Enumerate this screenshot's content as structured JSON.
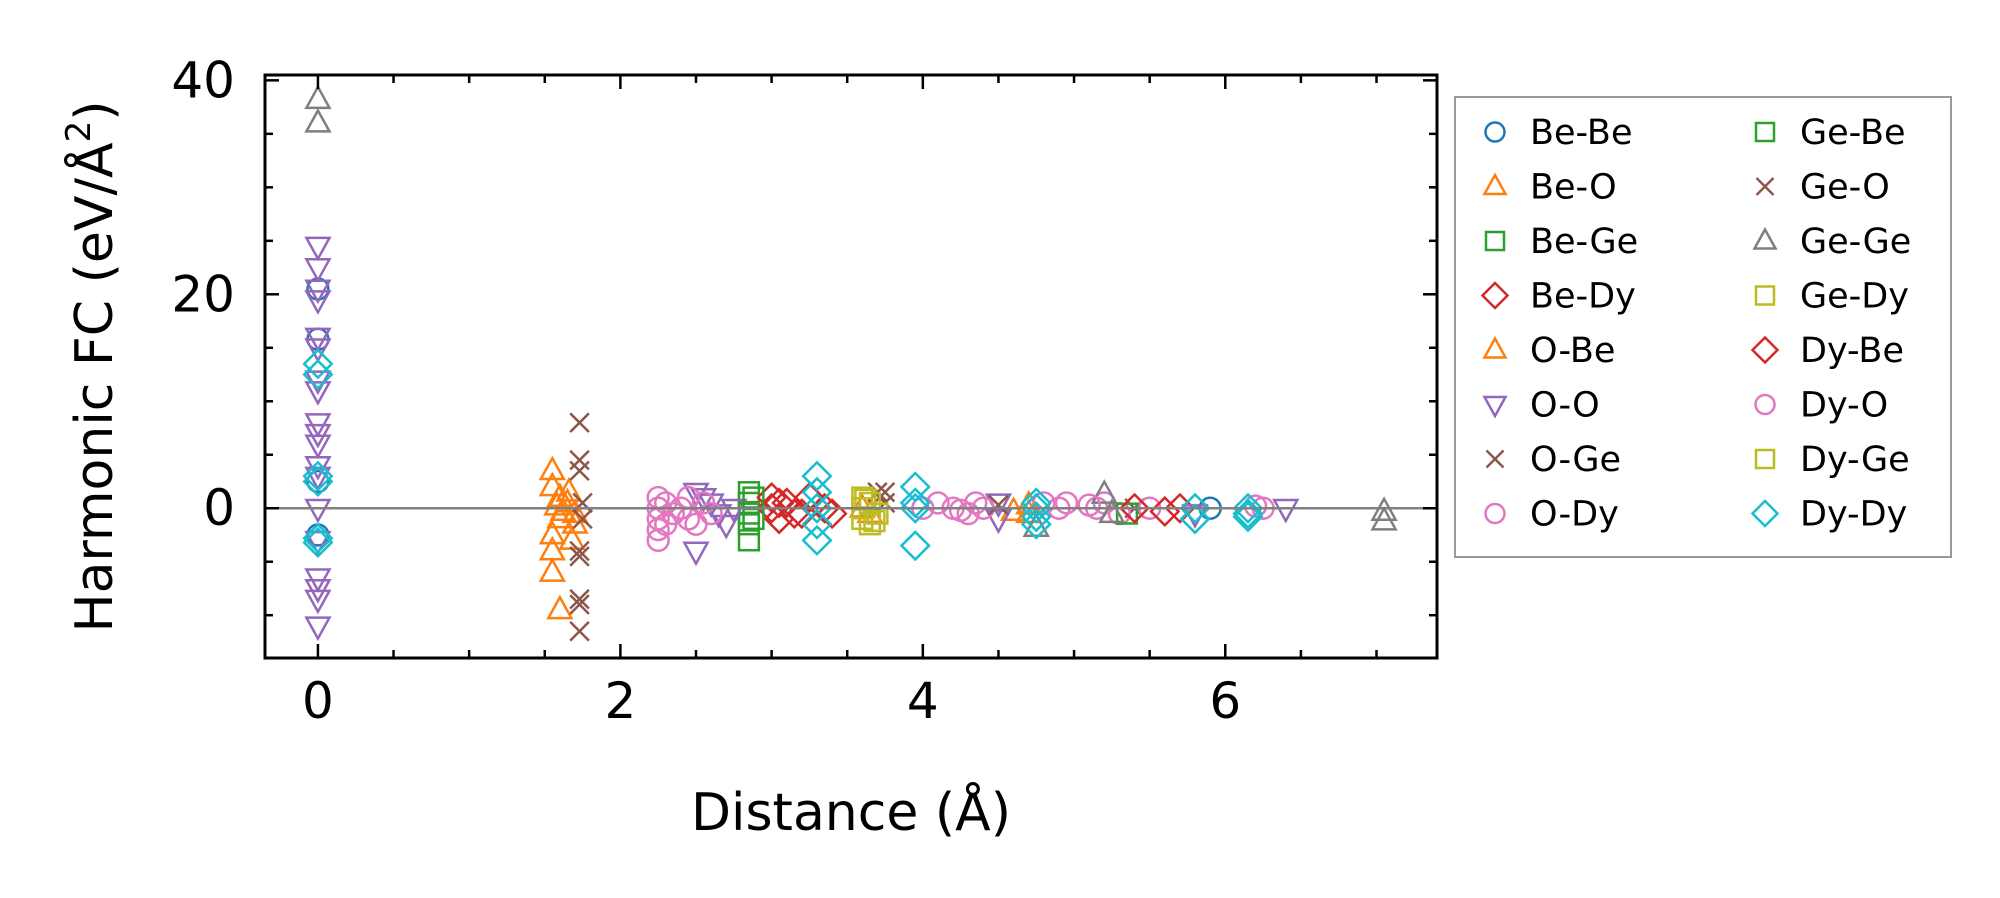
{
  "chart_data": {
    "type": "scatter",
    "xlabel": "Distance (Å)",
    "ylabel_main": "Harmonic FC (eV/Å",
    "ylabel_sup": "2",
    "ylabel_end": ")",
    "xlim": [
      -0.35,
      7.4
    ],
    "ylim": [
      -14,
      40.5
    ],
    "xticks": [
      0,
      2,
      4,
      6
    ],
    "xtick_labels": [
      "0",
      "2",
      "4",
      "6"
    ],
    "yticks": [
      0,
      20,
      40
    ],
    "ytick_labels": [
      "0",
      "20",
      "40"
    ],
    "grid": false,
    "zero_line": true,
    "legend_position": "outside-right",
    "series": [
      {
        "name": "Be-Be",
        "marker": "circle",
        "color": "#1f77b4",
        "points": [
          [
            0,
            20.5
          ],
          [
            0,
            15.8
          ],
          [
            0,
            2.5
          ],
          [
            0,
            -2.5
          ],
          [
            5.9,
            0
          ]
        ]
      },
      {
        "name": "Be-O",
        "marker": "triangle-up",
        "color": "#ff7f0e",
        "points": [
          [
            1.55,
            3.5
          ],
          [
            1.55,
            2
          ],
          [
            1.6,
            1
          ],
          [
            1.6,
            -1
          ],
          [
            1.55,
            -2.5
          ],
          [
            1.55,
            -4
          ],
          [
            1.55,
            -6
          ],
          [
            1.6,
            -9.5
          ],
          [
            1.65,
            0.5
          ],
          [
            1.7,
            -0.5
          ],
          [
            1.7,
            -1.5
          ],
          [
            4.6,
            -0.3
          ],
          [
            4.7,
            -0.5
          ]
        ]
      },
      {
        "name": "Be-Ge",
        "marker": "square",
        "color": "#2ca02c",
        "points": [
          [
            2.85,
            1.5
          ],
          [
            2.85,
            0.5
          ],
          [
            2.85,
            -0.5
          ],
          [
            2.85,
            -1.5
          ],
          [
            2.85,
            -3
          ]
        ]
      },
      {
        "name": "Be-Dy",
        "marker": "diamond",
        "color": "#d62728",
        "points": [
          [
            3.0,
            1
          ],
          [
            3.0,
            0
          ],
          [
            3.05,
            -1
          ],
          [
            3.1,
            0.5
          ],
          [
            3.15,
            -0.5
          ],
          [
            3.25,
            1
          ],
          [
            3.35,
            0
          ],
          [
            3.4,
            -0.5
          ],
          [
            5.7,
            0
          ]
        ]
      },
      {
        "name": "O-Be",
        "marker": "triangle-up",
        "color": "#ff7f0e",
        "points": [
          [
            1.58,
            0.2
          ],
          [
            1.62,
            -0.3
          ],
          [
            1.66,
            1.5
          ],
          [
            1.68,
            -3
          ],
          [
            3.6,
            0
          ],
          [
            3.65,
            -0.5
          ],
          [
            4.7,
            0.3
          ]
        ]
      },
      {
        "name": "O-O",
        "marker": "triangle-down",
        "color": "#9467bd",
        "points": [
          [
            0,
            24.5
          ],
          [
            0,
            22.5
          ],
          [
            0,
            20.5
          ],
          [
            0,
            19.5
          ],
          [
            0,
            16
          ],
          [
            0,
            15
          ],
          [
            0,
            12
          ],
          [
            0,
            11
          ],
          [
            0,
            8
          ],
          [
            0,
            7
          ],
          [
            0,
            6
          ],
          [
            0,
            4
          ],
          [
            0,
            3
          ],
          [
            0,
            0
          ],
          [
            0,
            -3
          ],
          [
            0,
            -6.5
          ],
          [
            0,
            -7.5
          ],
          [
            0,
            -8.5
          ],
          [
            0,
            -11
          ],
          [
            2.5,
            1.5
          ],
          [
            2.55,
            1
          ],
          [
            2.5,
            -4
          ],
          [
            2.6,
            0.5
          ],
          [
            2.65,
            -0.5
          ],
          [
            2.7,
            -1.5
          ],
          [
            2.75,
            0
          ],
          [
            4.5,
            0.5
          ],
          [
            4.5,
            -1
          ],
          [
            5.8,
            -0.5
          ],
          [
            6.4,
            0
          ]
        ]
      },
      {
        "name": "O-Ge",
        "marker": "x",
        "color": "#8c564b",
        "points": [
          [
            1.73,
            8
          ],
          [
            1.73,
            4.5
          ],
          [
            1.73,
            3.5
          ],
          [
            1.73,
            -4
          ],
          [
            1.73,
            -4.5
          ],
          [
            1.73,
            -8.5
          ],
          [
            1.73,
            -9
          ],
          [
            1.73,
            -11.5
          ],
          [
            3.7,
            1.5
          ],
          [
            3.75,
            0.5
          ],
          [
            5.4,
            0
          ]
        ]
      },
      {
        "name": "O-Dy",
        "marker": "circle",
        "color": "#e377c2",
        "points": [
          [
            2.25,
            1
          ],
          [
            2.25,
            0
          ],
          [
            2.25,
            -1
          ],
          [
            2.25,
            -2
          ],
          [
            2.25,
            -3
          ],
          [
            2.3,
            0.5
          ],
          [
            2.35,
            -0.5
          ],
          [
            2.4,
            0
          ],
          [
            2.45,
            1
          ],
          [
            2.5,
            -1.5
          ],
          [
            2.55,
            0.5
          ],
          [
            2.6,
            -0.5
          ],
          [
            4.0,
            0
          ],
          [
            4.1,
            0.5
          ],
          [
            4.2,
            0
          ],
          [
            4.3,
            -0.5
          ],
          [
            4.35,
            0.5
          ],
          [
            4.4,
            0
          ],
          [
            4.8,
            0.5
          ],
          [
            4.9,
            0
          ],
          [
            4.95,
            0.5
          ],
          [
            5.15,
            0
          ],
          [
            5.2,
            0.5
          ],
          [
            5.3,
            -0.5
          ],
          [
            5.5,
            0
          ],
          [
            6.25,
            0
          ]
        ]
      },
      {
        "name": "Ge-Be",
        "marker": "square",
        "color": "#2ca02c",
        "points": [
          [
            2.88,
            1
          ],
          [
            2.88,
            -1
          ],
          [
            5.35,
            -0.5
          ]
        ]
      },
      {
        "name": "Ge-O",
        "marker": "x",
        "color": "#8c564b",
        "points": [
          [
            1.75,
            0.5
          ],
          [
            1.75,
            -1
          ],
          [
            3.75,
            1.5
          ],
          [
            4.5,
            0.3
          ]
        ]
      },
      {
        "name": "Ge-Ge",
        "marker": "triangle-up",
        "color": "#7f7f7f",
        "points": [
          [
            0,
            38.2
          ],
          [
            0,
            36
          ],
          [
            4.75,
            -1.8
          ],
          [
            5.2,
            1.3
          ],
          [
            5.25,
            -0.5
          ],
          [
            7.05,
            -0.3
          ],
          [
            7.05,
            -1.2
          ]
        ]
      },
      {
        "name": "Ge-Dy",
        "marker": "square",
        "color": "#bcbd22",
        "points": [
          [
            3.6,
            1
          ],
          [
            3.6,
            0
          ],
          [
            3.6,
            -1
          ],
          [
            3.65,
            0.5
          ],
          [
            3.65,
            -1.5
          ],
          [
            3.7,
            -0.5
          ]
        ]
      },
      {
        "name": "Dy-Be",
        "marker": "diamond",
        "color": "#d62728",
        "points": [
          [
            3.05,
            0.5
          ],
          [
            3.2,
            -0.5
          ],
          [
            5.4,
            0
          ],
          [
            5.6,
            -0.3
          ]
        ]
      },
      {
        "name": "Dy-O",
        "marker": "circle",
        "color": "#e377c2",
        "points": [
          [
            2.3,
            -1.5
          ],
          [
            2.45,
            -1
          ],
          [
            4.25,
            -0.2
          ],
          [
            5.1,
            0.3
          ],
          [
            6.2,
            0.2
          ]
        ]
      },
      {
        "name": "Dy-Ge",
        "marker": "square",
        "color": "#bcbd22",
        "points": [
          [
            3.62,
            0.8
          ],
          [
            3.68,
            -1.2
          ]
        ]
      },
      {
        "name": "Dy-Dy",
        "marker": "diamond",
        "color": "#17becf",
        "points": [
          [
            0,
            13.5
          ],
          [
            0,
            12.5
          ],
          [
            0,
            3
          ],
          [
            0,
            2.5
          ],
          [
            0,
            -2.8
          ],
          [
            0,
            -3.2
          ],
          [
            3.3,
            3
          ],
          [
            3.3,
            1.5
          ],
          [
            3.3,
            0
          ],
          [
            3.3,
            -1.5
          ],
          [
            3.3,
            -3
          ],
          [
            3.95,
            2
          ],
          [
            3.95,
            0.5
          ],
          [
            3.95,
            0
          ],
          [
            3.95,
            -3.5
          ],
          [
            4.75,
            0.5
          ],
          [
            4.75,
            0
          ],
          [
            4.75,
            -0.8
          ],
          [
            4.75,
            -1.5
          ],
          [
            5.8,
            0
          ],
          [
            5.8,
            -1
          ],
          [
            6.15,
            0
          ],
          [
            6.15,
            -0.5
          ],
          [
            6.15,
            -0.8
          ]
        ]
      }
    ]
  }
}
